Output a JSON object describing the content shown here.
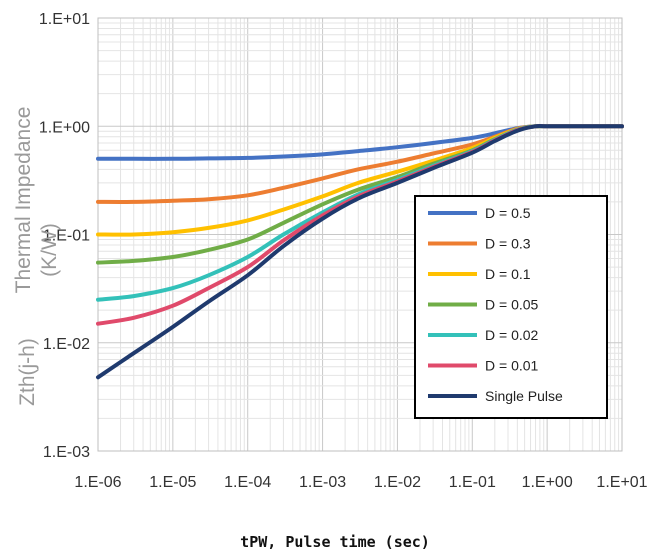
{
  "chart_data": {
    "type": "line",
    "title": "",
    "xlabel": "tPW, Pulse time (sec)",
    "ylabel_main": "Thermal Impedance",
    "ylabel_sym": "Zth(j-h)",
    "ylabel_unit": "(K/W)",
    "x_scale": "log",
    "y_scale": "log",
    "xlim": [
      1e-06,
      10
    ],
    "ylim": [
      0.001,
      10
    ],
    "grid": true,
    "legend_position": "right",
    "x_tick_labels": [
      "1.E-06",
      "1.E-05",
      "1.E-04",
      "1.E-03",
      "1.E-02",
      "1.E-01",
      "1.E+00",
      "1.E+01"
    ],
    "y_tick_labels": [
      "1.E-03",
      "1.E-02",
      "1.E-01",
      "1.E+00",
      "1.E+01"
    ],
    "x": [
      1e-06,
      3e-06,
      1e-05,
      3e-05,
      0.0001,
      0.0003,
      0.001,
      0.003,
      0.01,
      0.03,
      0.1,
      0.2,
      0.4,
      0.7,
      1,
      2,
      10
    ],
    "series": [
      {
        "name": "D = 0.5",
        "color": "#4472C4",
        "values": [
          0.5,
          0.5,
          0.5,
          0.505,
          0.51,
          0.525,
          0.55,
          0.59,
          0.64,
          0.7,
          0.78,
          0.86,
          0.96,
          1.0,
          1.0,
          1.0,
          1.0
        ]
      },
      {
        "name": "D = 0.3",
        "color": "#ED7D31",
        "values": [
          0.2,
          0.2,
          0.205,
          0.212,
          0.23,
          0.27,
          0.33,
          0.4,
          0.47,
          0.56,
          0.68,
          0.8,
          0.95,
          1.0,
          1.0,
          1.0,
          1.0
        ]
      },
      {
        "name": "D = 0.1",
        "color": "#FFC000",
        "values": [
          0.1,
          0.1,
          0.105,
          0.115,
          0.135,
          0.17,
          0.225,
          0.3,
          0.38,
          0.48,
          0.63,
          0.78,
          0.94,
          1.0,
          1.0,
          1.0,
          1.0
        ]
      },
      {
        "name": "D = 0.05",
        "color": "#70AD47",
        "values": [
          0.055,
          0.057,
          0.062,
          0.072,
          0.09,
          0.128,
          0.19,
          0.26,
          0.34,
          0.45,
          0.6,
          0.76,
          0.93,
          1.0,
          1.0,
          1.0,
          1.0
        ]
      },
      {
        "name": "D = 0.02",
        "color": "#33C1B9",
        "values": [
          0.025,
          0.027,
          0.032,
          0.042,
          0.062,
          0.1,
          0.16,
          0.235,
          0.32,
          0.43,
          0.59,
          0.75,
          0.93,
          1.0,
          1.0,
          1.0,
          1.0
        ]
      },
      {
        "name": "D = 0.01",
        "color": "#E04A6B",
        "values": [
          0.015,
          0.017,
          0.022,
          0.032,
          0.05,
          0.088,
          0.15,
          0.225,
          0.31,
          0.42,
          0.58,
          0.74,
          0.92,
          1.0,
          1.0,
          1.0,
          1.0
        ]
      },
      {
        "name": "Single Pulse",
        "color": "#1F3A6E",
        "values": [
          0.0048,
          0.008,
          0.014,
          0.024,
          0.042,
          0.078,
          0.14,
          0.215,
          0.3,
          0.41,
          0.57,
          0.73,
          0.91,
          1.0,
          1.0,
          1.0,
          1.0
        ]
      }
    ]
  }
}
